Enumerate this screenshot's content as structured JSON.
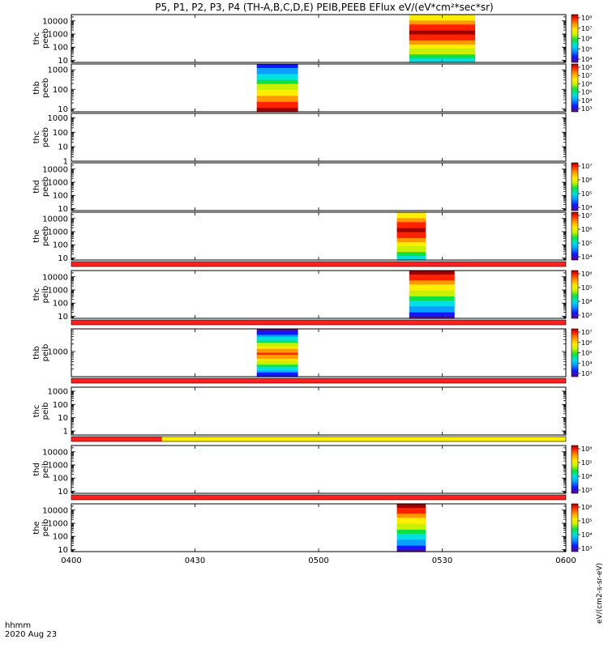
{
  "title": "P5, P1, P2, P3, P4 (TH-A,B,C,D,E) PEIB,PEEB EFlux eV/(eV*cm²*sec*sr)",
  "footer": {
    "time_label": "hhmm",
    "date_label": "2020 Aug 23"
  },
  "chart_data": {
    "type": "heatmap",
    "xlabel": "hhmm",
    "x_ticks": [
      "0400",
      "0430",
      "0500",
      "0530",
      "0600"
    ],
    "xlim": [
      "04:00",
      "06:00"
    ],
    "y_scale": "log",
    "colormap": [
      "#5a0a87",
      "#1018ff",
      "#0aa0ff",
      "#00e0e0",
      "#10e040",
      "#c8f000",
      "#ffee00",
      "#ff9900",
      "#ff2200",
      "#a00000"
    ],
    "panels": [
      {
        "ylabel": [
          "thc",
          "peeb"
        ],
        "ylim": [
          7,
          30000
        ],
        "yticks": [
          "10",
          "100",
          "1000",
          "10000"
        ],
        "data_interval": [
          "05:22",
          "05:38"
        ],
        "data_level": "high",
        "colorbar": {
          "ticks": [
            "10⁴",
            "10⁵",
            "10⁶",
            "10⁷",
            "10⁸"
          ]
        }
      },
      {
        "ylabel": [
          "thb",
          "peeb"
        ],
        "ylim": [
          7,
          2000
        ],
        "yticks": [
          "10",
          "100",
          "1000"
        ],
        "data_interval": [
          "04:45",
          "04:55"
        ],
        "data_level": "high-low-energy",
        "colorbar": {
          "ticks": [
            "10³",
            "10⁴",
            "10⁵",
            "10⁶",
            "10⁷",
            "10⁸"
          ]
        }
      },
      {
        "ylabel": [
          "thc",
          "peeb"
        ],
        "ylim": [
          1,
          2000
        ],
        "yticks": [
          "1",
          "10",
          "100",
          "1000"
        ],
        "data_interval": null,
        "colorbar": null
      },
      {
        "ylabel": [
          "thd",
          "peeb"
        ],
        "ylim": [
          7,
          30000
        ],
        "yticks": [
          "10",
          "100",
          "1000",
          "10000"
        ],
        "data_interval": null,
        "colorbar": {
          "ticks": [
            "10⁴",
            "10⁵",
            "10⁶",
            "10⁷"
          ]
        }
      },
      {
        "ylabel": [
          "the",
          "peeb"
        ],
        "ylim": [
          7,
          30000
        ],
        "yticks": [
          "10",
          "100",
          "1000",
          "10000"
        ],
        "data_interval": [
          "05:19",
          "05:26"
        ],
        "data_level": "high",
        "colorbar": {
          "ticks": [
            "10⁴",
            "10⁵",
            "10⁶",
            "10⁷"
          ]
        }
      },
      {
        "ylabel": [
          "thc",
          "peib"
        ],
        "ylim": [
          7,
          30000
        ],
        "yticks": [
          "10",
          "100",
          "1000",
          "10000"
        ],
        "data_interval": [
          "05:22",
          "05:33"
        ],
        "data_level": "mid",
        "colorbar": {
          "ticks": [
            "10³",
            "10⁴",
            "10⁵",
            "10⁶"
          ]
        }
      },
      {
        "ylabel": [
          "thb",
          "peib"
        ],
        "ylim": [
          100,
          8000
        ],
        "yticks": [
          "1000"
        ],
        "data_interval": [
          "04:45",
          "04:55"
        ],
        "data_level": "ion",
        "colorbar": {
          "ticks": [
            "10³",
            "10⁴",
            "10⁵",
            "10⁶",
            "10⁷"
          ]
        }
      },
      {
        "ylabel": [
          "thc",
          "peib"
        ],
        "ylim": [
          0.5,
          2000
        ],
        "yticks": [
          "1",
          "10",
          "100",
          "1000"
        ],
        "data_interval": null,
        "colorbar": null
      },
      {
        "ylabel": [
          "thd",
          "peib"
        ],
        "ylim": [
          7,
          30000
        ],
        "yticks": [
          "10",
          "100",
          "1000",
          "10000"
        ],
        "data_interval": null,
        "colorbar": {
          "ticks": [
            "10³",
            "10⁴",
            "10⁵",
            "10⁶"
          ]
        }
      },
      {
        "ylabel": [
          "the",
          "peib"
        ],
        "ylim": [
          7,
          30000
        ],
        "yticks": [
          "10",
          "100",
          "1000",
          "10000"
        ],
        "data_interval": [
          "05:19",
          "05:26"
        ],
        "data_level": "mid",
        "colorbar": {
          "ticks": [
            "10³",
            "10⁴",
            "10⁵",
            "10⁶"
          ]
        }
      }
    ],
    "status_bars": [
      {
        "after_panel": 5,
        "segments": [
          {
            "from": "04:00",
            "to": "06:00",
            "color": "#ff2020"
          }
        ]
      },
      {
        "after_panel": 6,
        "segments": [
          {
            "from": "04:00",
            "to": "06:00",
            "color": "#ff2020"
          }
        ]
      },
      {
        "after_panel": 7,
        "segments": [
          {
            "from": "04:00",
            "to": "06:00",
            "color": "#ff2020"
          }
        ]
      },
      {
        "after_panel": 8,
        "segments": [
          {
            "from": "04:00",
            "to": "04:22",
            "color": "#ff2020"
          },
          {
            "from": "04:22",
            "to": "06:00",
            "color": "#ffee00"
          }
        ]
      },
      {
        "after_panel": 9,
        "segments": [
          {
            "from": "04:00",
            "to": "06:00",
            "color": "#ff2020"
          }
        ]
      }
    ],
    "colorbar_label": "eV/(cm2-s-sr-eV)"
  }
}
